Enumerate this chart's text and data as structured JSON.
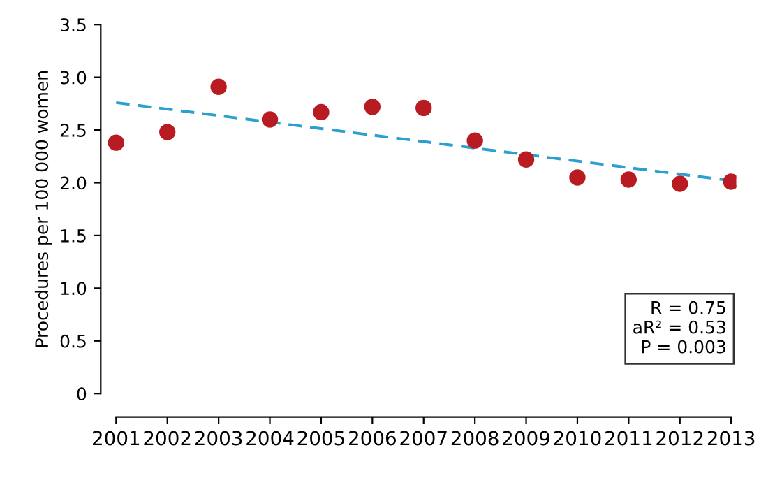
{
  "chart_data": {
    "type": "scatter",
    "ylabel": "Procedures per 100 000 women",
    "categories": [
      "2001",
      "2002",
      "2003",
      "2004",
      "2005",
      "2006",
      "2007",
      "2008",
      "2009",
      "2010",
      "2011",
      "2012",
      "2013"
    ],
    "series": [
      {
        "color": "#b81c22",
        "marker": "circle",
        "values": [
          2.38,
          2.48,
          2.91,
          2.6,
          2.67,
          2.72,
          2.71,
          2.4,
          2.22,
          2.05,
          2.03,
          1.99,
          2.01
        ]
      },
      {
        "type": "line",
        "color": "#2a9fd0",
        "line_style": "dashed",
        "values": [
          2.76,
          null,
          null,
          null,
          null,
          null,
          null,
          null,
          null,
          null,
          null,
          null,
          2.02
        ]
      }
    ],
    "ylim": [
      0,
      3.5
    ],
    "yticks": [
      0,
      0.5,
      {
        "value": 1,
        "label": "1.0"
      },
      1.5,
      {
        "value": 2,
        "label": "2.0"
      },
      2.5,
      {
        "value": 3,
        "label": "3.0"
      },
      3.5
    ],
    "annotations": [
      "R = 0.75\naR² = 0.53\nP = 0.003"
    ],
    "grid": false,
    "legend": false
  }
}
